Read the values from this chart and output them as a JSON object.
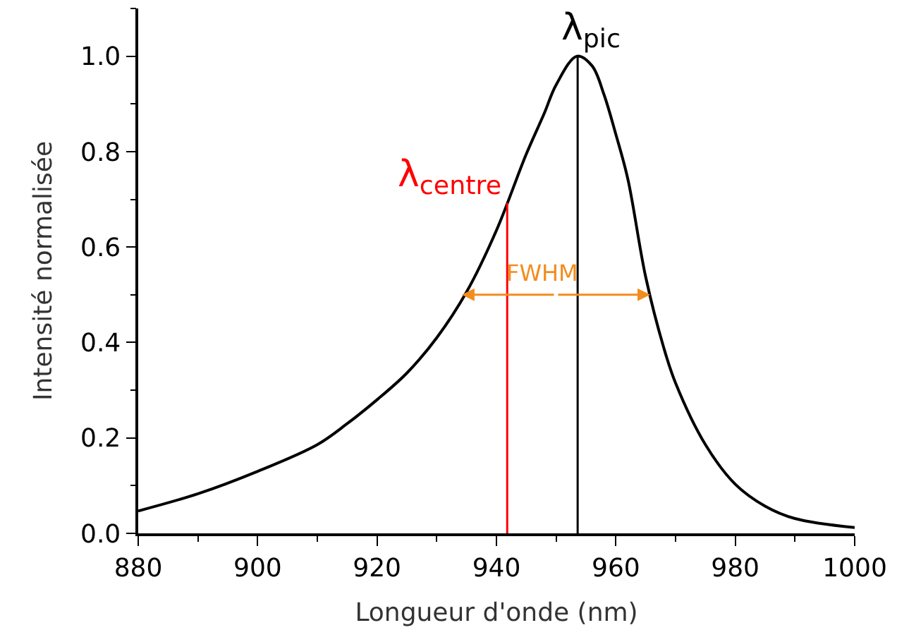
{
  "chart_data": {
    "type": "line",
    "xlabel": "Longueur d'onde (nm)",
    "ylabel": "Intensité normalisée",
    "xlim": [
      880,
      1000
    ],
    "xticks": [
      880,
      900,
      920,
      940,
      960,
      980,
      1000
    ],
    "ylim": [
      0,
      1.1
    ],
    "yticks": [
      {
        "value": 0,
        "label": "0.0"
      },
      {
        "value": 0.2,
        "label": "0.2"
      },
      {
        "value": 0.4,
        "label": "0.4"
      },
      {
        "value": 0.6,
        "label": "0.6"
      },
      {
        "value": 0.8,
        "label": "0.8"
      },
      {
        "value": 1.0,
        "label": "1.0"
      }
    ],
    "marker": "none",
    "line_style": "solid",
    "series": [
      {
        "color": "#000000",
        "x": [
          880,
          890,
          900,
          910,
          915,
          920,
          925,
          930,
          935,
          940,
          945,
          948,
          950,
          953.5,
          956,
          958,
          960,
          962,
          965,
          968,
          970,
          975,
          980,
          985,
          990,
          1000
        ],
        "values": [
          0.047,
          0.083,
          0.13,
          0.186,
          0.23,
          0.28,
          0.336,
          0.41,
          0.506,
          0.635,
          0.795,
          0.88,
          0.94,
          1.0,
          0.98,
          0.92,
          0.836,
          0.743,
          0.537,
          0.39,
          0.315,
          0.186,
          0.103,
          0.057,
          0.031,
          0.012
        ]
      }
    ],
    "ref_lines": [
      {
        "axis": "x",
        "value": 941.8,
        "label": "λ$_{centre}$",
        "color": "#ff0000"
      },
      {
        "axis": "x",
        "value": 953.6,
        "label": "λ$_{pic}$",
        "color": "#000000"
      }
    ],
    "annotations": [
      {
        "text": "FWHM",
        "x": 934.2,
        "y": 0.5
      }
    ]
  }
}
